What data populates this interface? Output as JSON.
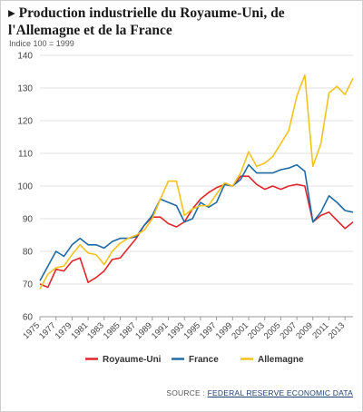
{
  "chart_data": {
    "type": "line",
    "title": "▸ Production industrielle du Royaume-Uni, de l'Allemagne et de la France",
    "subtitle": "Indice 100 = 1999",
    "xlabel": "",
    "ylabel": "",
    "xlim": [
      1975,
      2014
    ],
    "ylim": [
      60,
      140
    ],
    "yticks": [
      60,
      70,
      80,
      90,
      100,
      110,
      120,
      130,
      140
    ],
    "xticks": [
      "1975",
      "1977",
      "1979",
      "1981",
      "1983",
      "1985",
      "1987",
      "1989",
      "1991",
      "1993",
      "1995",
      "1997",
      "1999",
      "2001",
      "2003",
      "2005",
      "2007",
      "2009",
      "2011",
      "2013"
    ],
    "grid": true,
    "legend_position": "bottom",
    "x": [
      1975,
      1976,
      1977,
      1978,
      1979,
      1980,
      1981,
      1982,
      1983,
      1984,
      1985,
      1986,
      1987,
      1988,
      1989,
      1990,
      1991,
      1992,
      1993,
      1994,
      1995,
      1996,
      1997,
      1998,
      1999,
      2000,
      2001,
      2002,
      2003,
      2004,
      2005,
      2006,
      2007,
      2008,
      2009,
      2010,
      2011,
      2012,
      2013,
      2014
    ],
    "series": [
      {
        "name": "Royaume-Uni",
        "color": "#e0262b",
        "values": [
          70,
          69,
          74.5,
          74,
          77,
          78,
          70.5,
          72,
          74,
          77.5,
          78,
          81,
          84,
          88,
          90.5,
          90.5,
          88.5,
          87.5,
          89,
          93,
          96,
          98,
          99.5,
          100.5,
          100,
          103,
          103,
          100.5,
          99,
          100,
          99,
          100,
          100.5,
          100,
          89,
          91,
          92,
          89.5,
          87,
          89
        ]
      },
      {
        "name": "France",
        "color": "#1f6aa5",
        "values": [
          71,
          75.5,
          80,
          78.5,
          82,
          84,
          82,
          82,
          81,
          83,
          84,
          84,
          84.5,
          88,
          91,
          96,
          95,
          94,
          89,
          90,
          95,
          93.5,
          95,
          100.5,
          100,
          102,
          106.5,
          104,
          104,
          104,
          105,
          105.5,
          106.5,
          104.5,
          89,
          92,
          97,
          95,
          92.5,
          92
        ]
      },
      {
        "name": "Allemagne",
        "color": "#f4c21f",
        "values": [
          68.5,
          73,
          75,
          75.5,
          79,
          82,
          79.5,
          79,
          76,
          80,
          82.5,
          84,
          85,
          86.5,
          90,
          96,
          101.5,
          101.5,
          91,
          93,
          94,
          94,
          97.5,
          101,
          100,
          104,
          110.5,
          106,
          107,
          109,
          113,
          117,
          127.5,
          134,
          106,
          113,
          128.5,
          130.5,
          128,
          133
        ]
      }
    ]
  },
  "source": {
    "label": "SOURCE :",
    "link": "FEDERAL RESERVE ECONOMIC DATA"
  }
}
